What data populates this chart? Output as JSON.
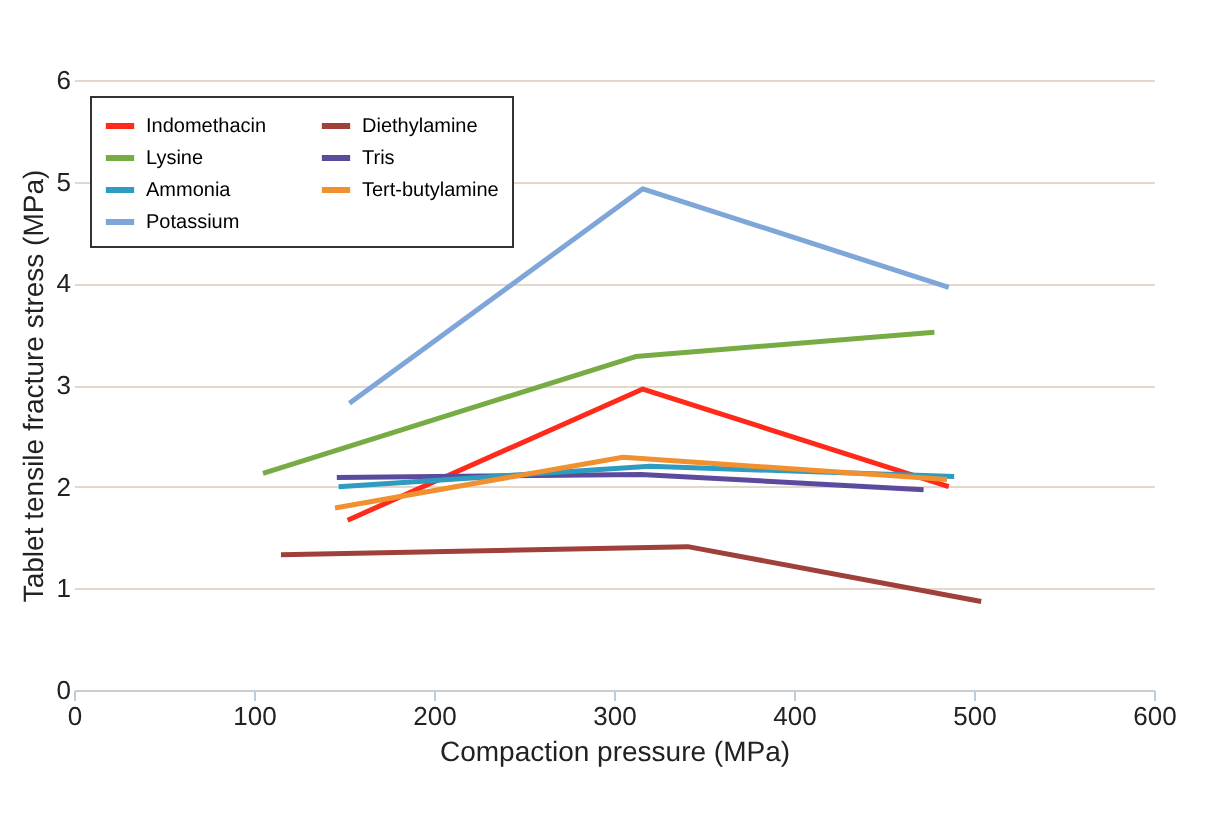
{
  "chart_data": {
    "type": "line",
    "xlabel": "Compaction pressure (MPa)",
    "ylabel": "Tablet tensile fracture stress (MPa)",
    "xlim": [
      0,
      600
    ],
    "xticks": [
      0,
      100,
      200,
      300,
      400,
      500,
      600
    ],
    "ylim": [
      0,
      6
    ],
    "yticks": [
      0,
      1,
      2,
      3,
      4,
      5,
      6
    ],
    "grid": "y",
    "legend": "top left",
    "series": [
      {
        "name": "Indomethacin",
        "color": "#ff2a1a",
        "x": [
          152,
          316,
          486
        ],
        "values": [
          1.67,
          2.96,
          2.0
        ]
      },
      {
        "name": "Diethylamine",
        "color": "#a0403a",
        "x": [
          115,
          341,
          504
        ],
        "values": [
          1.33,
          1.41,
          0.87
        ]
      },
      {
        "name": "Lysine",
        "color": "#77ab43",
        "x": [
          105,
          312,
          478
        ],
        "values": [
          2.13,
          3.28,
          3.52
        ]
      },
      {
        "name": "Tris",
        "color": "#5b4a9e",
        "x": [
          146,
          315,
          472
        ],
        "values": [
          2.09,
          2.12,
          1.97
        ]
      },
      {
        "name": "Ammonia",
        "color": "#2e9bc0",
        "x": [
          147,
          320,
          489
        ],
        "values": [
          2.0,
          2.2,
          2.1
        ]
      },
      {
        "name": "Tert-butylamine",
        "color": "#f0902e",
        "x": [
          145,
          305,
          485
        ],
        "values": [
          1.79,
          2.29,
          2.07
        ]
      },
      {
        "name": "Potassium",
        "color": "#7fa6d8",
        "x": [
          153,
          316,
          486
        ],
        "values": [
          2.82,
          4.93,
          3.96
        ]
      }
    ]
  }
}
